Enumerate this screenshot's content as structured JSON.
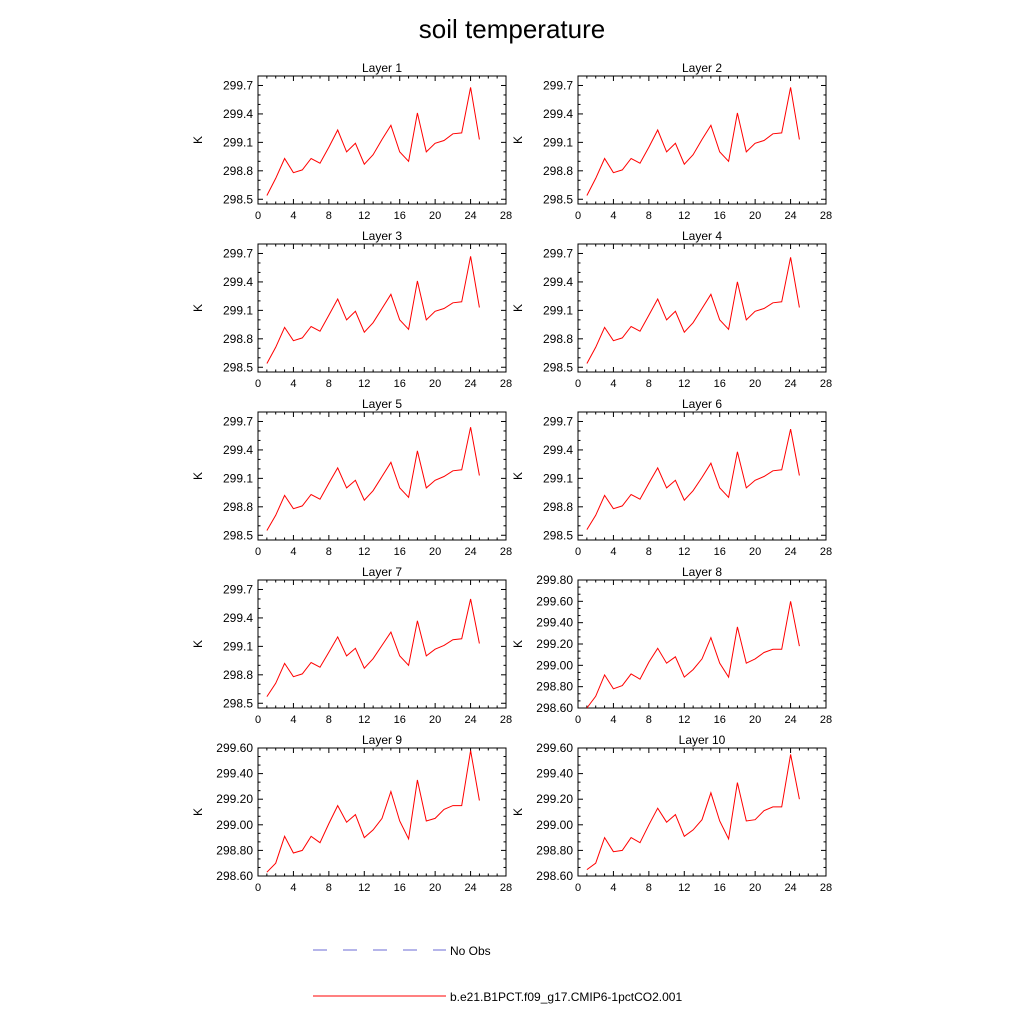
{
  "title": "soil temperature",
  "colors": {
    "model": "#ff0000",
    "obs": "#6b6bd6"
  },
  "legend": {
    "obs_label": "No Obs",
    "model_label": "b.e21.B1PCT.f09_g17.CMIP6-1pctCO2.001"
  },
  "chart_data": [
    {
      "type": "line",
      "title": "Layer 1",
      "ylabel": "K",
      "xlim": [
        0,
        28
      ],
      "ylim": [
        298.45,
        299.8
      ],
      "xticks": [
        "0",
        "4",
        "8",
        "12",
        "16",
        "20",
        "24",
        "28"
      ],
      "yticks": [
        "298.5",
        "298.8",
        "299.1",
        "299.4",
        "299.7"
      ],
      "x": [
        1,
        2,
        3,
        4,
        5,
        6,
        7,
        8,
        9,
        10,
        11,
        12,
        13,
        14,
        15,
        16,
        17,
        18,
        19,
        20,
        21,
        22,
        23,
        24,
        25
      ],
      "series": [
        {
          "values": [
            298.54,
            298.72,
            298.93,
            298.78,
            298.81,
            298.93,
            298.88,
            299.05,
            299.23,
            299.0,
            299.09,
            298.87,
            298.97,
            299.13,
            299.28,
            299.0,
            298.9,
            299.41,
            299.0,
            299.09,
            299.12,
            299.19,
            299.2,
            299.68,
            299.13
          ]
        }
      ]
    },
    {
      "type": "line",
      "title": "Layer 2",
      "ylabel": "K",
      "xlim": [
        0,
        28
      ],
      "ylim": [
        298.45,
        299.8
      ],
      "xticks": [
        "0",
        "4",
        "8",
        "12",
        "16",
        "20",
        "24",
        "28"
      ],
      "yticks": [
        "298.5",
        "298.8",
        "299.1",
        "299.4",
        "299.7"
      ],
      "x": [
        1,
        2,
        3,
        4,
        5,
        6,
        7,
        8,
        9,
        10,
        11,
        12,
        13,
        14,
        15,
        16,
        17,
        18,
        19,
        20,
        21,
        22,
        23,
        24,
        25
      ],
      "series": [
        {
          "values": [
            298.54,
            298.72,
            298.93,
            298.78,
            298.81,
            298.93,
            298.88,
            299.05,
            299.23,
            299.0,
            299.09,
            298.87,
            298.97,
            299.13,
            299.28,
            299.0,
            298.9,
            299.41,
            299.0,
            299.09,
            299.12,
            299.19,
            299.2,
            299.68,
            299.13
          ]
        }
      ]
    },
    {
      "type": "line",
      "title": "Layer 3",
      "ylabel": "K",
      "xlim": [
        0,
        28
      ],
      "ylim": [
        298.45,
        299.8
      ],
      "xticks": [
        "0",
        "4",
        "8",
        "12",
        "16",
        "20",
        "24",
        "28"
      ],
      "yticks": [
        "298.5",
        "298.8",
        "299.1",
        "299.4",
        "299.7"
      ],
      "x": [
        1,
        2,
        3,
        4,
        5,
        6,
        7,
        8,
        9,
        10,
        11,
        12,
        13,
        14,
        15,
        16,
        17,
        18,
        19,
        20,
        21,
        22,
        23,
        24,
        25
      ],
      "series": [
        {
          "values": [
            298.54,
            298.71,
            298.92,
            298.78,
            298.81,
            298.93,
            298.88,
            299.05,
            299.22,
            299.0,
            299.09,
            298.87,
            298.97,
            299.12,
            299.27,
            299.0,
            298.9,
            299.41,
            299.0,
            299.09,
            299.12,
            299.18,
            299.19,
            299.67,
            299.13
          ]
        }
      ]
    },
    {
      "type": "line",
      "title": "Layer 4",
      "ylabel": "K",
      "xlim": [
        0,
        28
      ],
      "ylim": [
        298.45,
        299.8
      ],
      "xticks": [
        "0",
        "4",
        "8",
        "12",
        "16",
        "20",
        "24",
        "28"
      ],
      "yticks": [
        "298.5",
        "298.8",
        "299.1",
        "299.4",
        "299.7"
      ],
      "x": [
        1,
        2,
        3,
        4,
        5,
        6,
        7,
        8,
        9,
        10,
        11,
        12,
        13,
        14,
        15,
        16,
        17,
        18,
        19,
        20,
        21,
        22,
        23,
        24,
        25
      ],
      "series": [
        {
          "values": [
            298.54,
            298.71,
            298.92,
            298.78,
            298.81,
            298.93,
            298.88,
            299.05,
            299.22,
            299.0,
            299.09,
            298.87,
            298.97,
            299.12,
            299.27,
            299.0,
            298.9,
            299.4,
            299.0,
            299.09,
            299.12,
            299.18,
            299.19,
            299.66,
            299.13
          ]
        }
      ]
    },
    {
      "type": "line",
      "title": "Layer 5",
      "ylabel": "K",
      "xlim": [
        0,
        28
      ],
      "ylim": [
        298.45,
        299.8
      ],
      "xticks": [
        "0",
        "4",
        "8",
        "12",
        "16",
        "20",
        "24",
        "28"
      ],
      "yticks": [
        "298.5",
        "298.8",
        "299.1",
        "299.4",
        "299.7"
      ],
      "x": [
        1,
        2,
        3,
        4,
        5,
        6,
        7,
        8,
        9,
        10,
        11,
        12,
        13,
        14,
        15,
        16,
        17,
        18,
        19,
        20,
        21,
        22,
        23,
        24,
        25
      ],
      "series": [
        {
          "values": [
            298.55,
            298.71,
            298.92,
            298.78,
            298.81,
            298.93,
            298.88,
            299.05,
            299.21,
            299.0,
            299.08,
            298.87,
            298.97,
            299.12,
            299.27,
            299.0,
            298.9,
            299.39,
            299.0,
            299.08,
            299.12,
            299.18,
            299.19,
            299.64,
            299.13
          ]
        }
      ]
    },
    {
      "type": "line",
      "title": "Layer 6",
      "ylabel": "K",
      "xlim": [
        0,
        28
      ],
      "ylim": [
        298.45,
        299.8
      ],
      "xticks": [
        "0",
        "4",
        "8",
        "12",
        "16",
        "20",
        "24",
        "28"
      ],
      "yticks": [
        "298.5",
        "298.8",
        "299.1",
        "299.4",
        "299.7"
      ],
      "x": [
        1,
        2,
        3,
        4,
        5,
        6,
        7,
        8,
        9,
        10,
        11,
        12,
        13,
        14,
        15,
        16,
        17,
        18,
        19,
        20,
        21,
        22,
        23,
        24,
        25
      ],
      "series": [
        {
          "values": [
            298.56,
            298.71,
            298.92,
            298.78,
            298.81,
            298.93,
            298.88,
            299.05,
            299.21,
            299.0,
            299.08,
            298.87,
            298.97,
            299.11,
            299.26,
            299.0,
            298.9,
            299.38,
            299.0,
            299.08,
            299.12,
            299.18,
            299.19,
            299.62,
            299.13
          ]
        }
      ]
    },
    {
      "type": "line",
      "title": "Layer 7",
      "ylabel": "K",
      "xlim": [
        0,
        28
      ],
      "ylim": [
        298.45,
        299.8
      ],
      "xticks": [
        "0",
        "4",
        "8",
        "12",
        "16",
        "20",
        "24",
        "28"
      ],
      "yticks": [
        "298.5",
        "298.8",
        "299.1",
        "299.4",
        "299.7"
      ],
      "x": [
        1,
        2,
        3,
        4,
        5,
        6,
        7,
        8,
        9,
        10,
        11,
        12,
        13,
        14,
        15,
        16,
        17,
        18,
        19,
        20,
        21,
        22,
        23,
        24,
        25
      ],
      "series": [
        {
          "values": [
            298.57,
            298.71,
            298.92,
            298.78,
            298.81,
            298.93,
            298.88,
            299.04,
            299.2,
            299.0,
            299.08,
            298.87,
            298.97,
            299.11,
            299.25,
            299.0,
            298.9,
            299.37,
            299.0,
            299.07,
            299.11,
            299.17,
            299.18,
            299.6,
            299.13
          ]
        }
      ]
    },
    {
      "type": "line",
      "title": "Layer 8",
      "ylabel": "K",
      "xlim": [
        0,
        28
      ],
      "ylim": [
        298.6,
        299.8
      ],
      "xticks": [
        "0",
        "4",
        "8",
        "12",
        "16",
        "20",
        "24",
        "28"
      ],
      "yticks": [
        "298.60",
        "298.80",
        "299.00",
        "299.20",
        "299.40",
        "299.60",
        "299.80"
      ],
      "x": [
        1,
        2,
        3,
        4,
        5,
        6,
        7,
        8,
        9,
        10,
        11,
        12,
        13,
        14,
        15,
        16,
        17,
        18,
        19,
        20,
        21,
        22,
        23,
        24,
        25
      ],
      "series": [
        {
          "values": [
            298.6,
            298.71,
            298.91,
            298.78,
            298.81,
            298.92,
            298.87,
            299.03,
            299.16,
            299.02,
            299.08,
            298.89,
            298.96,
            299.06,
            299.26,
            299.02,
            298.89,
            299.36,
            299.02,
            299.06,
            299.12,
            299.15,
            299.15,
            299.6,
            299.18
          ]
        }
      ]
    },
    {
      "type": "line",
      "title": "Layer 9",
      "ylabel": "K",
      "xlim": [
        0,
        28
      ],
      "ylim": [
        298.6,
        299.6
      ],
      "xticks": [
        "0",
        "4",
        "8",
        "12",
        "16",
        "20",
        "24",
        "28"
      ],
      "yticks": [
        "298.60",
        "298.80",
        "299.00",
        "299.20",
        "299.40",
        "299.60"
      ],
      "x": [
        1,
        2,
        3,
        4,
        5,
        6,
        7,
        8,
        9,
        10,
        11,
        12,
        13,
        14,
        15,
        16,
        17,
        18,
        19,
        20,
        21,
        22,
        23,
        24,
        25
      ],
      "series": [
        {
          "values": [
            298.63,
            298.7,
            298.91,
            298.78,
            298.8,
            298.91,
            298.86,
            299.01,
            299.15,
            299.02,
            299.08,
            298.9,
            298.96,
            299.05,
            299.26,
            299.03,
            298.89,
            299.35,
            299.03,
            299.05,
            299.12,
            299.15,
            299.15,
            299.58,
            299.19
          ]
        }
      ]
    },
    {
      "type": "line",
      "title": "Layer 10",
      "ylabel": "K",
      "xlim": [
        0,
        28
      ],
      "ylim": [
        298.6,
        299.6
      ],
      "xticks": [
        "0",
        "4",
        "8",
        "12",
        "16",
        "20",
        "24",
        "28"
      ],
      "yticks": [
        "298.60",
        "298.80",
        "299.00",
        "299.20",
        "299.40",
        "299.60"
      ],
      "x": [
        1,
        2,
        3,
        4,
        5,
        6,
        7,
        8,
        9,
        10,
        11,
        12,
        13,
        14,
        15,
        16,
        17,
        18,
        19,
        20,
        21,
        22,
        23,
        24,
        25
      ],
      "series": [
        {
          "values": [
            298.65,
            298.7,
            298.9,
            298.79,
            298.8,
            298.9,
            298.86,
            299.0,
            299.13,
            299.02,
            299.08,
            298.91,
            298.96,
            299.04,
            299.25,
            299.03,
            298.89,
            299.33,
            299.03,
            299.04,
            299.11,
            299.14,
            299.14,
            299.55,
            299.2
          ]
        }
      ]
    }
  ]
}
